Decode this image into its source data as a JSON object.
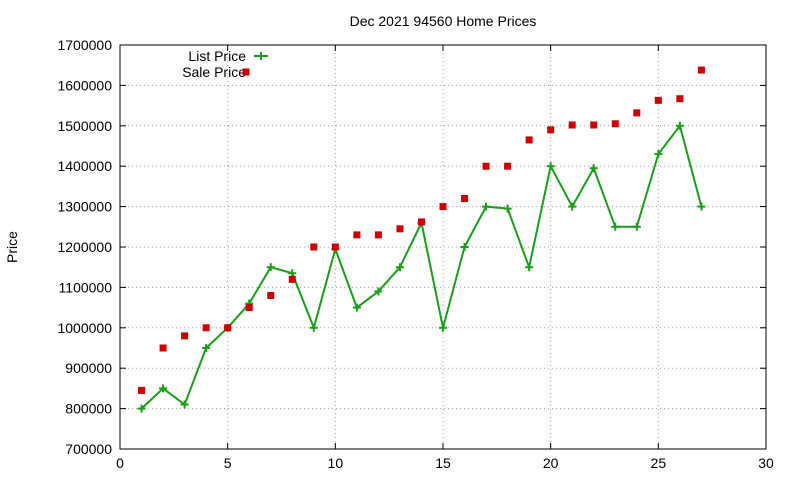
{
  "chart_data": {
    "type": "line",
    "title": "Dec 2021 94560 Home Prices",
    "xlabel": "",
    "ylabel": "Price",
    "xlim": [
      0,
      30
    ],
    "ylim": [
      700000,
      1700000
    ],
    "x_ticks": [
      0,
      5,
      10,
      15,
      20,
      25,
      30
    ],
    "y_ticks": [
      700000,
      800000,
      900000,
      1000000,
      1100000,
      1200000,
      1300000,
      1400000,
      1500000,
      1600000,
      1700000
    ],
    "grid": true,
    "legend_position": "top-left",
    "series": [
      {
        "name": "List Price",
        "style": "line+cross",
        "color": "#1a9e1a",
        "points": [
          [
            1,
            800000
          ],
          [
            2,
            850000
          ],
          [
            3,
            810000
          ],
          [
            4,
            950000
          ],
          [
            5,
            1000000
          ],
          [
            6,
            1060000
          ],
          [
            7,
            1150000
          ],
          [
            8,
            1135000
          ],
          [
            9,
            1000000
          ],
          [
            10,
            1195000
          ],
          [
            11,
            1050000
          ],
          [
            12,
            1090000
          ],
          [
            13,
            1150000
          ],
          [
            14,
            1260000
          ],
          [
            15,
            1000000
          ],
          [
            16,
            1200000
          ],
          [
            17,
            1300000
          ],
          [
            18,
            1295000
          ],
          [
            19,
            1150000
          ],
          [
            20,
            1400000
          ],
          [
            21,
            1300000
          ],
          [
            22,
            1395000
          ],
          [
            23,
            1250000
          ],
          [
            24,
            1250000
          ],
          [
            25,
            1430000
          ],
          [
            26,
            1500000
          ],
          [
            27,
            1300000
          ]
        ]
      },
      {
        "name": "Sale Price",
        "style": "square",
        "color": "#cc0000",
        "points": [
          [
            1,
            845000
          ],
          [
            2,
            950000
          ],
          [
            3,
            980000
          ],
          [
            4,
            1000000
          ],
          [
            5,
            1000000
          ],
          [
            6,
            1050000
          ],
          [
            7,
            1080000
          ],
          [
            8,
            1120000
          ],
          [
            9,
            1200000
          ],
          [
            10,
            1200000
          ],
          [
            11,
            1230000
          ],
          [
            12,
            1230000
          ],
          [
            13,
            1245000
          ],
          [
            14,
            1262000
          ],
          [
            15,
            1300000
          ],
          [
            16,
            1320000
          ],
          [
            17,
            1400000
          ],
          [
            18,
            1400000
          ],
          [
            19,
            1465000
          ],
          [
            20,
            1490000
          ],
          [
            21,
            1502000
          ],
          [
            22,
            1502000
          ],
          [
            23,
            1505000
          ],
          [
            24,
            1532000
          ],
          [
            25,
            1563000
          ],
          [
            26,
            1567000
          ],
          [
            27,
            1638000
          ]
        ]
      }
    ]
  }
}
